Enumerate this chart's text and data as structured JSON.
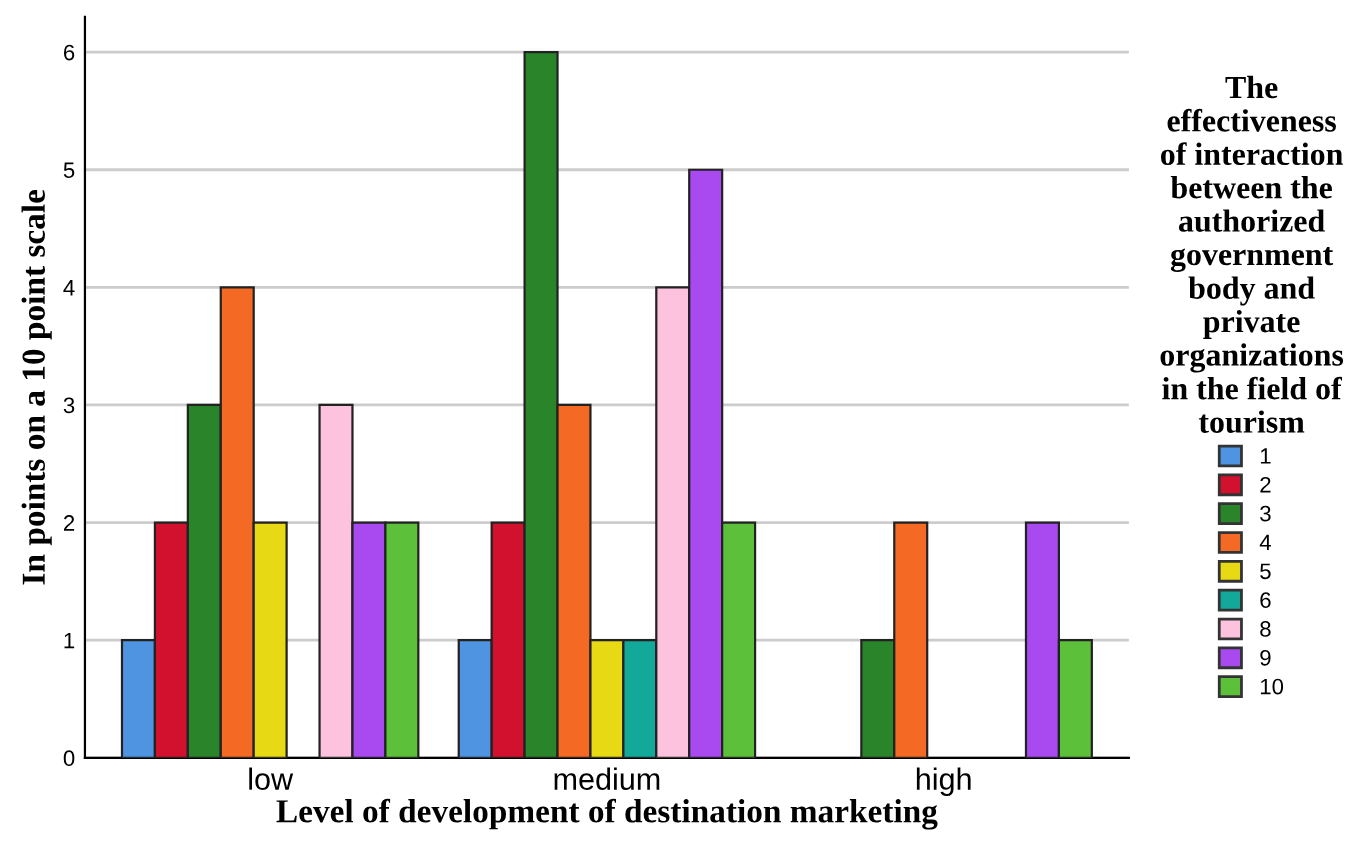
{
  "chart_data": {
    "type": "bar",
    "xlabel": "Level of development of destination marketing",
    "ylabel": "In points on a 10 point scale",
    "legend_title": "The\neffectiveness\nof interaction\nbetween the\nauthorized\ngovernment\nbody and\nprivate\norganizations\nin the field of\ntourism",
    "categories": [
      "low",
      "medium",
      "high"
    ],
    "series": [
      {
        "name": "1",
        "color": "#4f94e0",
        "values": [
          1,
          1,
          null
        ]
      },
      {
        "name": "2",
        "color": "#d2112f",
        "values": [
          2,
          2,
          null
        ]
      },
      {
        "name": "3",
        "color": "#2a842a",
        "values": [
          3,
          6,
          1
        ]
      },
      {
        "name": "4",
        "color": "#f46a25",
        "values": [
          4,
          3,
          2
        ]
      },
      {
        "name": "5",
        "color": "#e8d915",
        "values": [
          2,
          1,
          null
        ]
      },
      {
        "name": "6",
        "color": "#12a89a",
        "values": [
          null,
          1,
          null
        ]
      },
      {
        "name": "8",
        "color": "#fdc2dd",
        "values": [
          3,
          4,
          null
        ]
      },
      {
        "name": "9",
        "color": "#a84af0",
        "values": [
          2,
          5,
          2
        ]
      },
      {
        "name": "10",
        "color": "#5cc03a",
        "values": [
          2,
          2,
          1
        ]
      }
    ],
    "ylim": [
      0,
      6.3
    ],
    "yticks": [
      0,
      1,
      2,
      3,
      4,
      5,
      6
    ],
    "grid": "y",
    "legend": "right"
  }
}
